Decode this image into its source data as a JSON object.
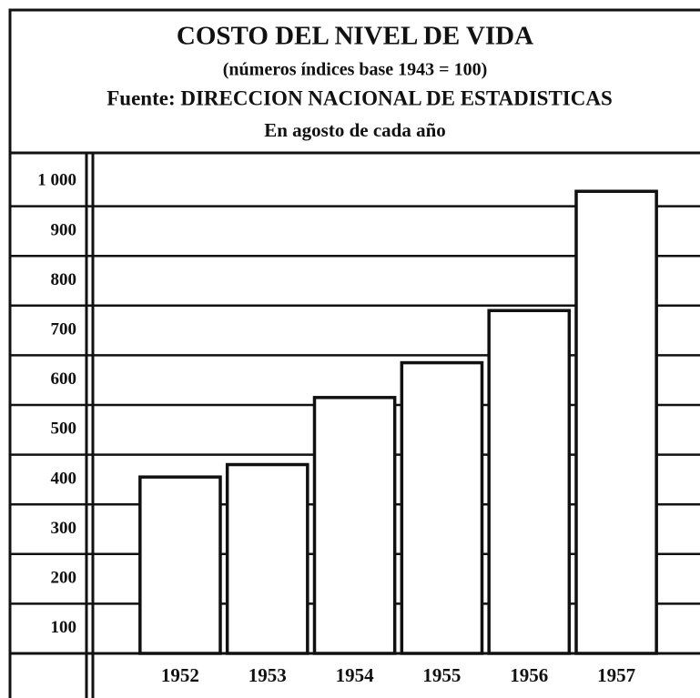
{
  "chart_data": {
    "type": "bar",
    "title": "COSTO DEL NIVEL DE VIDA",
    "subtitle": "(números índices base 1943 = 100)",
    "source": "Fuente: DIRECCION NACIONAL DE ESTADISTICAS",
    "note": "En agosto de cada año",
    "categories": [
      "1952",
      "1953",
      "1954",
      "1955",
      "1956",
      "1957"
    ],
    "values": [
      405,
      430,
      565,
      635,
      740,
      980
    ],
    "color": "#ffffff",
    "ylim": [
      50,
      1050
    ],
    "yticks": [
      100,
      200,
      300,
      400,
      500,
      600,
      700,
      800,
      900,
      {
        "value": 1000,
        "label": "1 000"
      }
    ],
    "grid": true
  }
}
